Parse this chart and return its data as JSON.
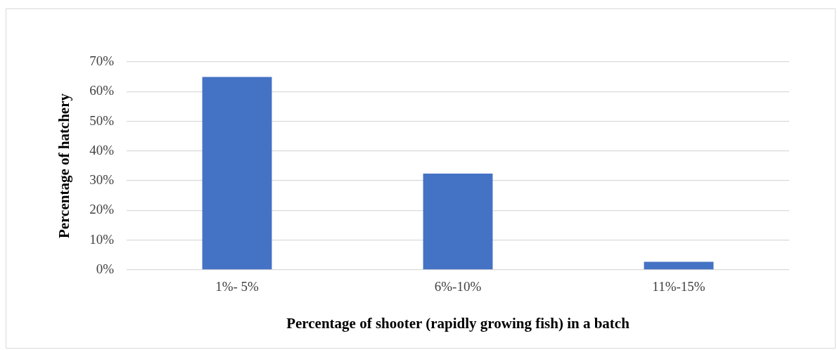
{
  "chart_data": {
    "type": "bar",
    "xlabel": "Percentage of shooter (rapidly growing fish) in a batch",
    "ylabel": "Percentage of hatchery",
    "categories": [
      "1%- 5%",
      "6%-10%",
      "11%-15%"
    ],
    "values": [
      64.9,
      32.4,
      2.7
    ],
    "color": "#4472c4",
    "ylim": [
      0,
      70
    ],
    "yticks": [
      {
        "value": 0,
        "label": "0%"
      },
      {
        "value": 10,
        "label": "10%"
      },
      {
        "value": 20,
        "label": "20%"
      },
      {
        "value": 30,
        "label": "30%"
      },
      {
        "value": 40,
        "label": "40%"
      },
      {
        "value": 50,
        "label": "50%"
      },
      {
        "value": 60,
        "label": "60%"
      },
      {
        "value": 70,
        "label": "70%"
      }
    ],
    "grid": "y"
  }
}
